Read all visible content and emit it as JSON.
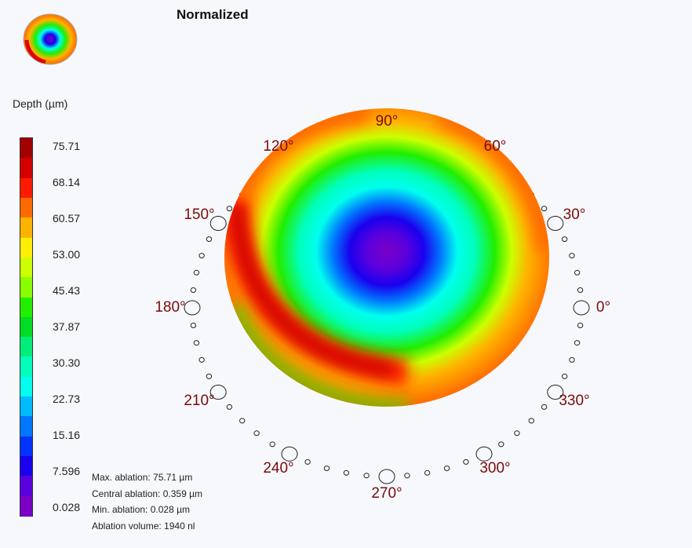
{
  "title": "Normalized",
  "legend": {
    "label": "Depth (µm)",
    "ticks": [
      "75.71",
      "68.14",
      "60.57",
      "53.00",
      "45.43",
      "37.87",
      "30.30",
      "22.73",
      "15.16",
      "7.596",
      "0.028"
    ],
    "colors": [
      "#a30000",
      "#d40000",
      "#ff1a00",
      "#ff6a00",
      "#ffb300",
      "#ffee00",
      "#ccff00",
      "#88ff00",
      "#22ee00",
      "#00dd22",
      "#00ee77",
      "#00ffbb",
      "#00ffee",
      "#00bbff",
      "#0077ff",
      "#0033ff",
      "#1a00ee",
      "#5a00dd",
      "#7a00c8"
    ]
  },
  "stats": {
    "max": "Max. ablation: 75.71 µm",
    "central": "Central ablation: 0.359 µm",
    "min": "Min. ablation: 0.028 µm",
    "volume": "Ablation volume: 1940 nl"
  },
  "angles": [
    "0°",
    "30°",
    "60°",
    "90°",
    "120°",
    "150°",
    "180°",
    "210°",
    "240°",
    "270°",
    "300°",
    "330°"
  ]
}
